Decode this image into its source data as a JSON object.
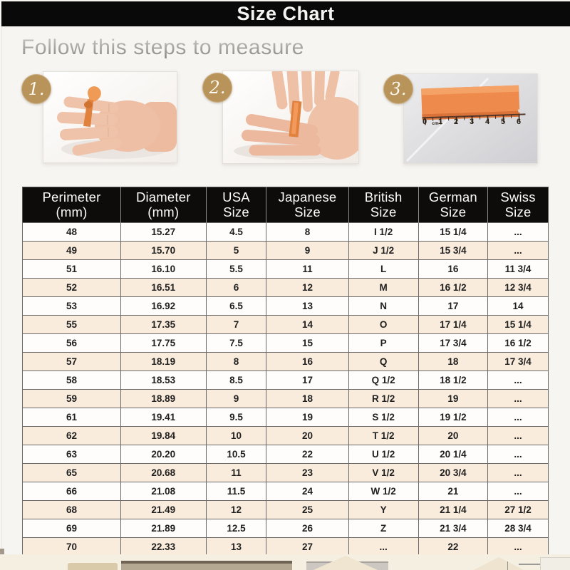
{
  "title_bar": {
    "title": "Size Chart"
  },
  "instructions": {
    "heading": "Follow this steps to measure",
    "steps": [
      {
        "number": "1."
      },
      {
        "number": "2."
      },
      {
        "number": "3."
      }
    ]
  },
  "ruler": {
    "unit_label": "cm",
    "marks": [
      "0",
      "1",
      "2",
      "3",
      "4",
      "5",
      "6"
    ]
  },
  "size_table": {
    "columns": [
      {
        "line1": "Perimeter",
        "line2": "(mm)"
      },
      {
        "line1": "Diameter",
        "line2": "(mm)"
      },
      {
        "line1": "USA",
        "line2": "Size"
      },
      {
        "line1": "Japanese",
        "line2": "Size"
      },
      {
        "line1": "British",
        "line2": "Size"
      },
      {
        "line1": "German",
        "line2": "Size"
      },
      {
        "line1": "Swiss",
        "line2": "Size"
      }
    ],
    "rows": [
      [
        "48",
        "15.27",
        "4.5",
        "8",
        "I 1/2",
        "15 1/4",
        "..."
      ],
      [
        "49",
        "15.70",
        "5",
        "9",
        "J 1/2",
        "15 3/4",
        "..."
      ],
      [
        "51",
        "16.10",
        "5.5",
        "11",
        "L",
        "16",
        "11 3/4"
      ],
      [
        "52",
        "16.51",
        "6",
        "12",
        "M",
        "16 1/2",
        "12 3/4"
      ],
      [
        "53",
        "16.92",
        "6.5",
        "13",
        "N",
        "17",
        "14"
      ],
      [
        "55",
        "17.35",
        "7",
        "14",
        "O",
        "17 1/4",
        "15 1/4"
      ],
      [
        "56",
        "17.75",
        "7.5",
        "15",
        "P",
        "17 3/4",
        "16 1/2"
      ],
      [
        "57",
        "18.19",
        "8",
        "16",
        "Q",
        "18",
        "17 3/4"
      ],
      [
        "58",
        "18.53",
        "8.5",
        "17",
        "Q 1/2",
        "18 1/2",
        "..."
      ],
      [
        "59",
        "18.89",
        "9",
        "18",
        "R 1/2",
        "19",
        "..."
      ],
      [
        "61",
        "19.41",
        "9.5",
        "19",
        "S 1/2",
        "19 1/2",
        "..."
      ],
      [
        "62",
        "19.84",
        "10",
        "20",
        "T 1/2",
        "20",
        "..."
      ],
      [
        "63",
        "20.20",
        "10.5",
        "22",
        "U 1/2",
        "20 1/4",
        "..."
      ],
      [
        "65",
        "20.68",
        "11",
        "23",
        "V 1/2",
        "20 3/4",
        "..."
      ],
      [
        "66",
        "21.08",
        "11.5",
        "24",
        "W 1/2",
        "21",
        "..."
      ],
      [
        "68",
        "21.49",
        "12",
        "25",
        "Y",
        "21 1/4",
        "27 1/2"
      ],
      [
        "69",
        "21.89",
        "12.5",
        "26",
        "Z",
        "21 3/4",
        "28 3/4"
      ],
      [
        "70",
        "22.33",
        "13",
        "27",
        "...",
        "22",
        "..."
      ]
    ]
  },
  "colors": {
    "header_bg": "#0d0c0a",
    "row_alt": "#f9ecdc",
    "accent_gold": "#b8935a",
    "ribbon_orange": "#e0813d"
  }
}
